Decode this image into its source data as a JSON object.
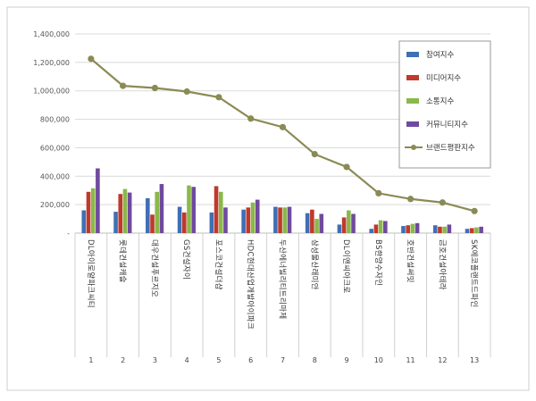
{
  "chart_data": {
    "type": "bar",
    "categories": [
      "DL이앤씨 e편한세상",
      "롯데건설 롯데캐슬",
      "대우건설 푸르지오",
      "GS건설 자이",
      "포스코건설 더샵",
      "HDC현대산업개발 아이파크",
      "두산에너빌리티 트리마제",
      "삼성물산 래미안",
      "DL이앤씨 아크로",
      "BS한양 수자인",
      "호반건설 써밋",
      "금호건설 아테라",
      "SK에코플랜트 드파인"
    ],
    "category_display": [
      "DL아이로얄파크씨티",
      "롯데건설캐슬",
      "대우건설푸르지오",
      "GS건설자이",
      "포스코건설더샵",
      "HDC현대산업개발아이파크",
      "두산에너빌리티트리마제",
      "삼성물산래미안",
      "DL이앤씨아크로",
      "BS한양수자인",
      "호반건설써밋",
      "금호건설아테라",
      "SK에코플랜트드파인"
    ],
    "x_numbers": [
      "1",
      "2",
      "3",
      "4",
      "5",
      "6",
      "7",
      "8",
      "9",
      "10",
      "11",
      "12",
      "13"
    ],
    "yticks": [
      "-",
      "200,000",
      "400,000",
      "600,000",
      "800,000",
      "1,000,000",
      "1,200,000",
      "1,400,000"
    ],
    "ylim": [
      0,
      1400000
    ],
    "series": [
      {
        "name": "참여지수",
        "color": "#3f6fb5",
        "values": [
          160000,
          150000,
          245000,
          185000,
          145000,
          165000,
          185000,
          140000,
          60000,
          30000,
          50000,
          55000,
          30000
        ]
      },
      {
        "name": "미디어지수",
        "color": "#c0392b",
        "values": [
          290000,
          275000,
          130000,
          145000,
          330000,
          180000,
          180000,
          165000,
          110000,
          60000,
          55000,
          45000,
          35000
        ]
      },
      {
        "name": "소통지수",
        "color": "#8ab84a",
        "values": [
          315000,
          310000,
          290000,
          335000,
          290000,
          215000,
          180000,
          100000,
          160000,
          90000,
          65000,
          45000,
          40000
        ]
      },
      {
        "name": "커뮤니티지수",
        "color": "#6f4a9e",
        "values": [
          455000,
          285000,
          345000,
          325000,
          180000,
          235000,
          185000,
          135000,
          135000,
          85000,
          70000,
          60000,
          45000
        ]
      }
    ],
    "line_series": {
      "name": "브랜드평판지수",
      "color": "#8b8a55",
      "values": [
        1225000,
        1035000,
        1020000,
        995000,
        955000,
        805000,
        745000,
        555000,
        465000,
        280000,
        240000,
        215000,
        155000
      ]
    },
    "legend_position": "right",
    "grid": true
  }
}
